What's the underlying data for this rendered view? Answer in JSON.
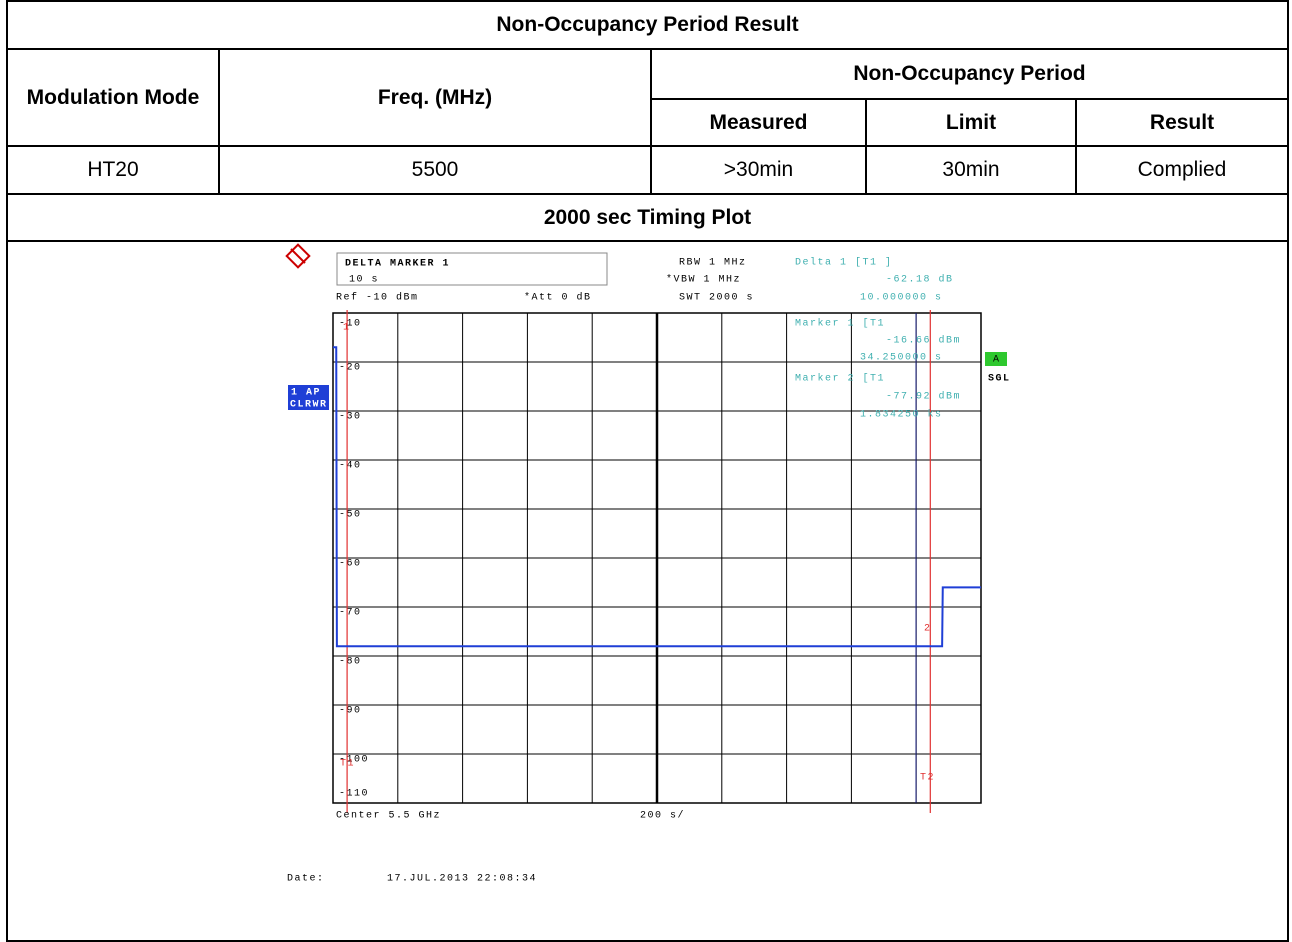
{
  "table": {
    "title": "Non-Occupancy Period Result",
    "headers": {
      "mode": "Modulation Mode",
      "freq": "Freq. (MHz)",
      "group": "Non-Occupancy Period",
      "measured": "Measured",
      "limit": "Limit",
      "result": "Result"
    },
    "row": [
      "HT20",
      "5500",
      ">30min",
      "30min",
      "Complied"
    ],
    "plot_title": "2000 sec Timing Plot"
  },
  "plot": {
    "box_title": "DELTA MARKER 1",
    "box_value": "10 s",
    "ref": "Ref -10 dBm",
    "att": "*Att  0 dB",
    "rbw": "RBW 1 MHz",
    "vbw": "*VBW 1 MHz",
    "swt": "SWT 2000 s",
    "delta_label": "Delta 1 [T1 ]",
    "delta_level": "-62.18 dB",
    "delta_time": "10.000000 s",
    "marker1_label": "Marker 1 [T1",
    "marker1_level": "-16.66 dBm",
    "marker1_time": "34.250000 s",
    "marker2_label": "Marker 2 [T1",
    "marker2_level": "-77.92 dBm",
    "marker2_time": "1.834250 ks",
    "trace_mode": "1 AP",
    "trace_detector": "CLRWR",
    "badge_a": "A",
    "badge_sgl": "SGL",
    "center": "Center 5.5 GHz",
    "span_div": "200 s/",
    "date_label": "Date:",
    "date": "17.JUL.2013  22:08:34",
    "t1": "T1",
    "t2": "T2",
    "m1": "1",
    "m2": "2",
    "xlim": [
      0,
      2000
    ],
    "ylim": [
      -110,
      -10
    ],
    "yticks": [
      -10,
      -20,
      -30,
      -40,
      -50,
      -60,
      -70,
      -80,
      -90,
      -100,
      -110
    ],
    "xticks": [
      0,
      200,
      400,
      600,
      800,
      1000,
      1200,
      1400,
      1600,
      1800,
      2000
    ],
    "grid": true,
    "trace": {
      "color": "#1f3fd6",
      "x": [
        0,
        10,
        12,
        1880,
        1882,
        2000
      ],
      "y": [
        -17,
        -17,
        -78,
        -78,
        -66,
        -66
      ]
    },
    "marker_x": [
      34.25,
      1834.25
    ]
  }
}
